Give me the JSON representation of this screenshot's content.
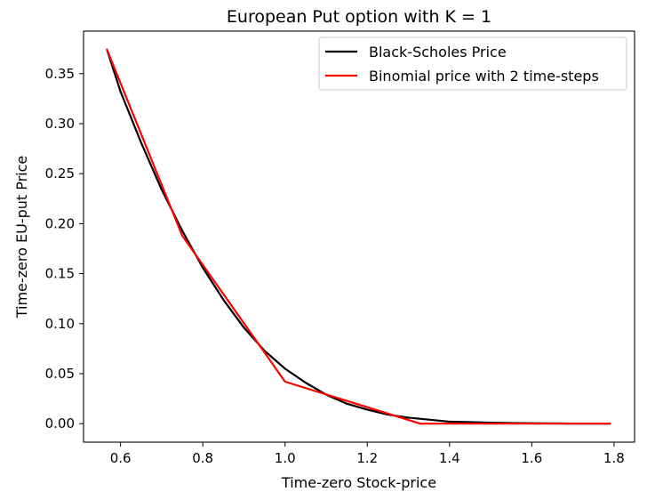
{
  "chart_data": {
    "type": "line",
    "title": "European Put option with K = 1",
    "xlabel": "Time-zero Stock-price",
    "ylabel": "Time-zero EU-put Price",
    "xlim": [
      0.51,
      1.85
    ],
    "ylim": [
      -0.0185,
      0.3925
    ],
    "xticks": [
      0.6,
      0.8,
      1.0,
      1.2,
      1.4,
      1.6,
      1.8
    ],
    "xtick_labels": [
      "0.6",
      "0.8",
      "1.0",
      "1.2",
      "1.4",
      "1.6",
      "1.8"
    ],
    "yticks": [
      0.0,
      0.05,
      0.1,
      0.15,
      0.2,
      0.25,
      0.3,
      0.35
    ],
    "ytick_labels": [
      "0.00",
      "0.05",
      "0.10",
      "0.15",
      "0.20",
      "0.25",
      "0.30",
      "0.35"
    ],
    "grid": false,
    "legend_position": "top-right",
    "series": [
      {
        "name": "Black-Scholes Price",
        "color": "#000000",
        "x": [
          0.567,
          0.6,
          0.65,
          0.7,
          0.75,
          0.8,
          0.85,
          0.9,
          0.95,
          1.0,
          1.05,
          1.1,
          1.15,
          1.2,
          1.25,
          1.3,
          1.35,
          1.4,
          1.45,
          1.5,
          1.55,
          1.6,
          1.7,
          1.79
        ],
        "y": [
          0.374,
          0.332,
          0.281,
          0.234,
          0.193,
          0.156,
          0.124,
          0.096,
          0.073,
          0.055,
          0.041,
          0.029,
          0.02,
          0.014,
          0.009,
          0.006,
          0.004,
          0.002,
          0.0015,
          0.001,
          0.0006,
          0.0004,
          0.0001,
          0.0
        ]
      },
      {
        "name": "Binomial price with 2 time-steps",
        "color": "#ff0000",
        "x": [
          0.567,
          0.75,
          1.0,
          1.329,
          1.79
        ],
        "y": [
          0.374,
          0.188,
          0.042,
          0.0,
          0.0
        ]
      }
    ]
  }
}
